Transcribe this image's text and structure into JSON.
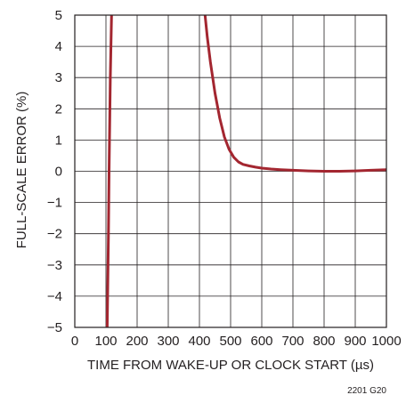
{
  "chart_data": {
    "type": "line",
    "title": "",
    "xlabel": "TIME FROM WAKE-UP OR CLOCK START (µs)",
    "ylabel": "FULL-SCALE ERROR (%)",
    "xlim": [
      0,
      1000
    ],
    "ylim": [
      -5,
      5
    ],
    "grid": true,
    "x_ticks": [
      0,
      100,
      200,
      300,
      400,
      500,
      600,
      700,
      800,
      900,
      1000
    ],
    "x_tick_labels": [
      "0",
      "100",
      "200",
      "300",
      "400",
      "500",
      "600",
      "700",
      "800",
      "900",
      "1000"
    ],
    "y_ticks": [
      -5,
      -4,
      -3,
      -2,
      -1,
      0,
      1,
      2,
      3,
      4,
      5
    ],
    "y_tick_labels": [
      "−5",
      "−4",
      "−3",
      "−2",
      "−1",
      "0",
      "1",
      "2",
      "3",
      "4",
      "5"
    ],
    "series_color": "#a32630",
    "series": [
      {
        "segments": [
          [
            [
              104,
              -5
            ],
            [
              106,
              -3.5
            ],
            [
              108,
              -2
            ],
            [
              110,
              0
            ],
            [
              112,
              1.5
            ],
            [
              114,
              3
            ],
            [
              116,
              4
            ],
            [
              118,
              5
            ]
          ],
          [
            [
              418,
              5
            ],
            [
              425,
              4.3
            ],
            [
              435,
              3.5
            ],
            [
              450,
              2.5
            ],
            [
              465,
              1.7
            ],
            [
              480,
              1.1
            ],
            [
              495,
              0.7
            ],
            [
              510,
              0.45
            ],
            [
              525,
              0.3
            ],
            [
              540,
              0.22
            ],
            [
              560,
              0.17
            ],
            [
              580,
              0.13
            ],
            [
              600,
              0.1
            ],
            [
              630,
              0.07
            ],
            [
              660,
              0.05
            ],
            [
              700,
              0.03
            ],
            [
              750,
              0.01
            ],
            [
              800,
              0.0
            ],
            [
              850,
              0.0
            ],
            [
              900,
              0.01
            ],
            [
              950,
              0.03
            ],
            [
              1000,
              0.05
            ]
          ]
        ]
      }
    ]
  },
  "figure_id": "2201 G20"
}
